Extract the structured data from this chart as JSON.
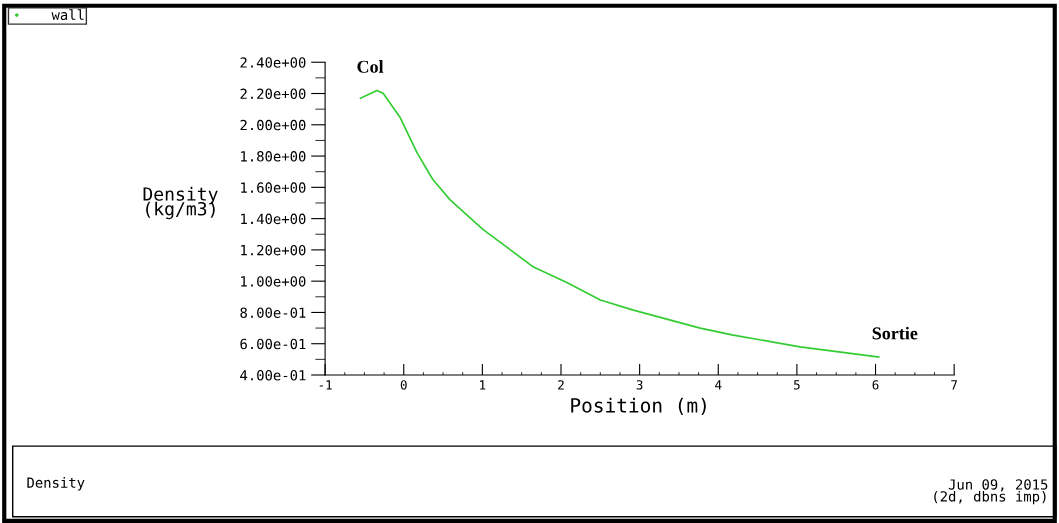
{
  "chart_data": {
    "type": "line",
    "xlabel": "Position (m)",
    "ylabel": "Density\n(kg/m3)",
    "x": [
      -0.55,
      -0.34,
      -0.26,
      -0.05,
      0.17,
      0.37,
      0.59,
      1.01,
      1.65,
      2.08,
      2.5,
      2.92,
      3.77,
      4.19,
      5.04,
      6.04
    ],
    "series": [
      {
        "name": "wall",
        "color": "#33cc33",
        "values": [
          2.17,
          2.22,
          2.2,
          2.05,
          1.82,
          1.65,
          1.52,
          1.33,
          1.09,
          0.99,
          0.88,
          0.815,
          0.7,
          0.655,
          0.58,
          0.515
        ]
      }
    ],
    "xlim": [
      -1,
      7
    ],
    "xticks": [
      -1,
      0,
      1,
      2,
      3,
      4,
      5,
      6,
      7
    ],
    "ylim": [
      0.4,
      2.4
    ],
    "yticks": [
      {
        "value": 0.4,
        "label": "4.00e-01"
      },
      {
        "value": 0.6,
        "label": "6.00e-01"
      },
      {
        "value": 0.8,
        "label": "8.00e-01"
      },
      {
        "value": 1.0,
        "label": "1.00e+00"
      },
      {
        "value": 1.2,
        "label": "1.20e+00"
      },
      {
        "value": 1.4,
        "label": "1.40e+00"
      },
      {
        "value": 1.6,
        "label": "1.60e+00"
      },
      {
        "value": 1.8,
        "label": "1.80e+00"
      },
      {
        "value": 2.0,
        "label": "2.00e+00"
      },
      {
        "value": 2.2,
        "label": "2.20e+00"
      },
      {
        "value": 2.4,
        "label": "2.40e+00"
      }
    ],
    "annotations": [
      {
        "text": "Col",
        "x": -0.34,
        "y": 2.22
      },
      {
        "text": "Sortie",
        "x": 6.04,
        "y": 0.515
      },
      "Density",
      "Jun 09, 2015",
      "(2d, dbns imp)"
    ],
    "legend": "top left",
    "grid": false,
    "marker": "none",
    "line_style": "solid"
  }
}
